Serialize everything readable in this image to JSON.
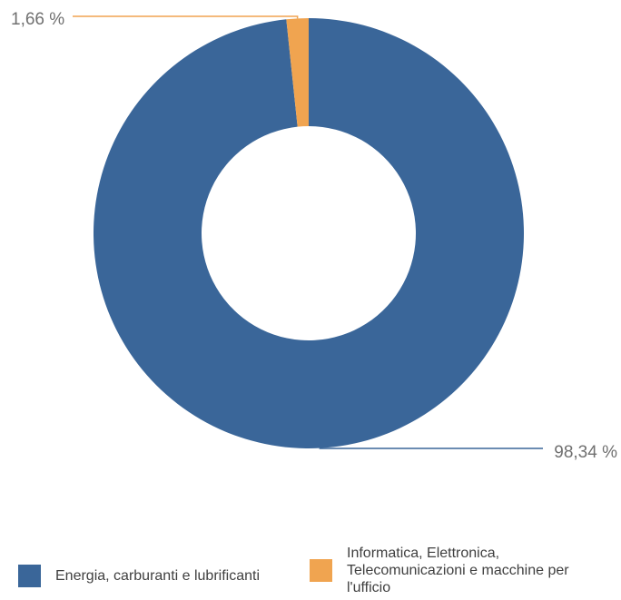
{
  "chart_data": {
    "type": "pie",
    "title": "",
    "subtitle": "",
    "donut": true,
    "legend_position": "bottom",
    "slices": [
      {
        "name": "Energia, carburanti e lubrificanti",
        "value": 98.34,
        "label": "98,34 %",
        "color": "#3a6699"
      },
      {
        "name": "Informatica, Elettronica, Telecomunicazioni e macchine per l'ufficio",
        "value": 1.66,
        "label": "1,66 %",
        "color": "#f0a450"
      }
    ]
  }
}
